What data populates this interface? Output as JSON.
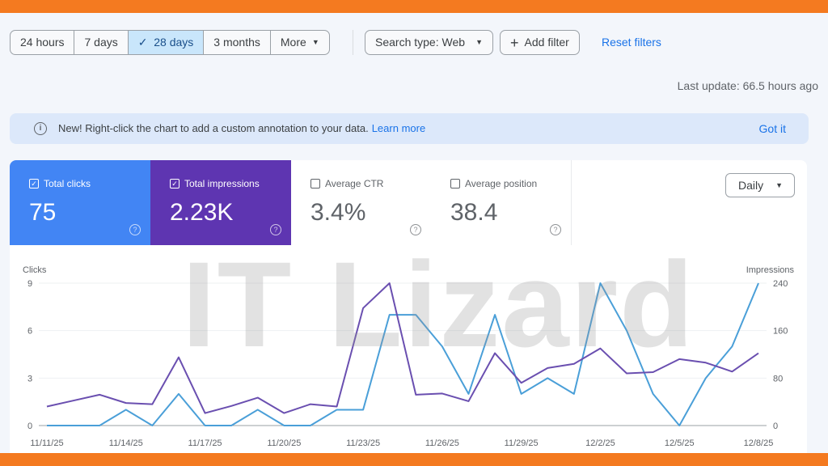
{
  "toolbar": {
    "ranges": [
      "24 hours",
      "7 days",
      "28 days",
      "3 months",
      "More"
    ],
    "selected": "28 days",
    "search_type": "Search type: Web",
    "add_filter": "Add filter",
    "reset": "Reset filters",
    "last_update": "Last update: 66.5 hours ago"
  },
  "banner": {
    "text": "New! Right-click the chart to add a custom annotation to your data.",
    "learn_more": "Learn more",
    "got_it": "Got it"
  },
  "metrics": [
    {
      "label": "Total clicks",
      "value": "75",
      "checked": true,
      "color": "#4285f4"
    },
    {
      "label": "Total impressions",
      "value": "2.23K",
      "checked": true,
      "color": "#5e35b1"
    },
    {
      "label": "Average CTR",
      "value": "3.4%",
      "checked": false
    },
    {
      "label": "Average position",
      "value": "38.4",
      "checked": false
    }
  ],
  "granularity": "Daily",
  "watermark": "IT Lizard",
  "chart_data": {
    "type": "line",
    "x": [
      "11/11/25",
      "11/12/25",
      "11/13/25",
      "11/14/25",
      "11/15/25",
      "11/16/25",
      "11/17/25",
      "11/18/25",
      "11/19/25",
      "11/20/25",
      "11/21/25",
      "11/22/25",
      "11/23/25",
      "11/24/25",
      "11/25/25",
      "11/26/25",
      "11/27/25",
      "11/28/25",
      "11/29/25",
      "11/30/25",
      "12/1/25",
      "12/2/25",
      "12/3/25",
      "12/4/25",
      "12/5/25",
      "12/6/25",
      "12/7/25",
      "12/8/25"
    ],
    "xticks": [
      "11/11/25",
      "11/14/25",
      "11/17/25",
      "11/20/25",
      "11/23/25",
      "11/26/25",
      "11/29/25",
      "12/2/25",
      "12/5/25",
      "12/8/25"
    ],
    "ylabel_left": "Clicks",
    "ylim_left": [
      0,
      9
    ],
    "yticks_left": [
      "0",
      "3",
      "6",
      "9"
    ],
    "ylabel_right": "Impressions",
    "ylim_right": [
      0,
      240
    ],
    "yticks_right": [
      "0",
      "80",
      "160",
      "240"
    ],
    "grid": true,
    "series": [
      {
        "name": "Clicks",
        "axis": "left",
        "color": "#4a9fd8",
        "values": [
          0,
          0,
          0,
          1,
          0,
          2,
          0,
          0,
          1,
          0,
          0,
          1,
          1,
          7,
          7,
          5,
          2,
          7,
          2,
          3,
          2,
          9,
          6,
          2,
          0,
          3,
          5,
          9
        ]
      },
      {
        "name": "Impressions",
        "axis": "right",
        "color": "#6a4fb0",
        "values": [
          32,
          42,
          52,
          38,
          36,
          115,
          21,
          33,
          47,
          21,
          36,
          32,
          198,
          240,
          52,
          54,
          41,
          122,
          72,
          97,
          104,
          130,
          88,
          90,
          112,
          106,
          91,
          122
        ]
      }
    ]
  }
}
